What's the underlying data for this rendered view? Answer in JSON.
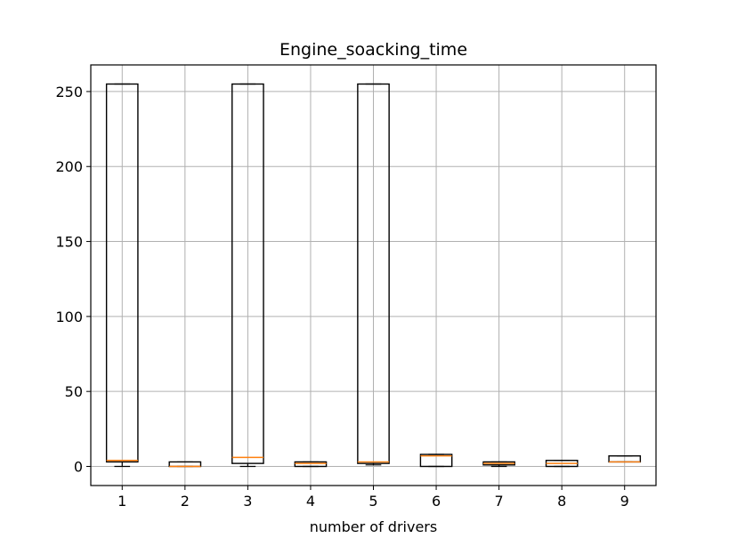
{
  "chart_data": {
    "type": "boxplot",
    "title": "Engine_soacking_time",
    "xlabel": "number of drivers",
    "ylabel": "",
    "categories": [
      "1",
      "2",
      "3",
      "4",
      "5",
      "6",
      "7",
      "8",
      "9"
    ],
    "boxes": [
      {
        "category": "1",
        "whisker_low": 0,
        "q1": 3,
        "median": 4,
        "q3": 255,
        "whisker_high": 255
      },
      {
        "category": "2",
        "whisker_low": 0,
        "q1": 0,
        "median": 0,
        "q3": 3,
        "whisker_high": 3
      },
      {
        "category": "3",
        "whisker_low": 0,
        "q1": 2,
        "median": 6,
        "q3": 255,
        "whisker_high": 255
      },
      {
        "category": "4",
        "whisker_low": 0,
        "q1": 0,
        "median": 2,
        "q3": 3,
        "whisker_high": 3
      },
      {
        "category": "5",
        "whisker_low": 1,
        "q1": 2,
        "median": 3,
        "q3": 255,
        "whisker_high": 255
      },
      {
        "category": "6",
        "whisker_low": 0,
        "q1": 0,
        "median": 7,
        "q3": 8,
        "whisker_high": 8
      },
      {
        "category": "7",
        "whisker_low": 0,
        "q1": 1,
        "median": 2,
        "q3": 3,
        "whisker_high": 3
      },
      {
        "category": "8",
        "whisker_low": 0,
        "q1": 0,
        "median": 2,
        "q3": 4,
        "whisker_high": 4
      },
      {
        "category": "9",
        "whisker_low": 3,
        "q1": 3,
        "median": 3,
        "q3": 7,
        "whisker_high": 7
      }
    ],
    "yticks": [
      0,
      50,
      100,
      150,
      200,
      250
    ],
    "ylim": [
      -12.75,
      267.75
    ],
    "grid": true,
    "colors": {
      "box": "#000000",
      "median": "#ff7f0e",
      "grid": "#b0b0b0"
    }
  }
}
